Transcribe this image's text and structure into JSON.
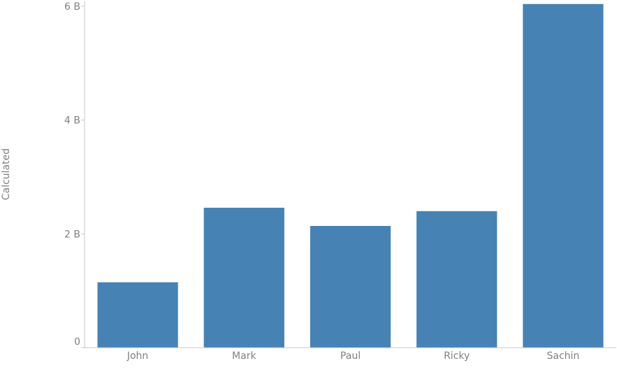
{
  "chart_data": {
    "type": "bar",
    "categories": [
      "John",
      "Mark",
      "Paul",
      "Ricky",
      "Sachin"
    ],
    "values": [
      1150000000,
      2460000000,
      2140000000,
      2400000000,
      6040000000
    ],
    "ylabel": "Calculated",
    "xlabel": "",
    "ylim": [
      0,
      6000000000
    ],
    "y_ticks": [
      {
        "value": 0,
        "label": "0"
      },
      {
        "value": 2000000000,
        "label": "2 B"
      },
      {
        "value": 4000000000,
        "label": "4 B"
      },
      {
        "value": 6000000000,
        "label": "6 B"
      }
    ],
    "grid": false,
    "bar_color": "#4682b4"
  }
}
